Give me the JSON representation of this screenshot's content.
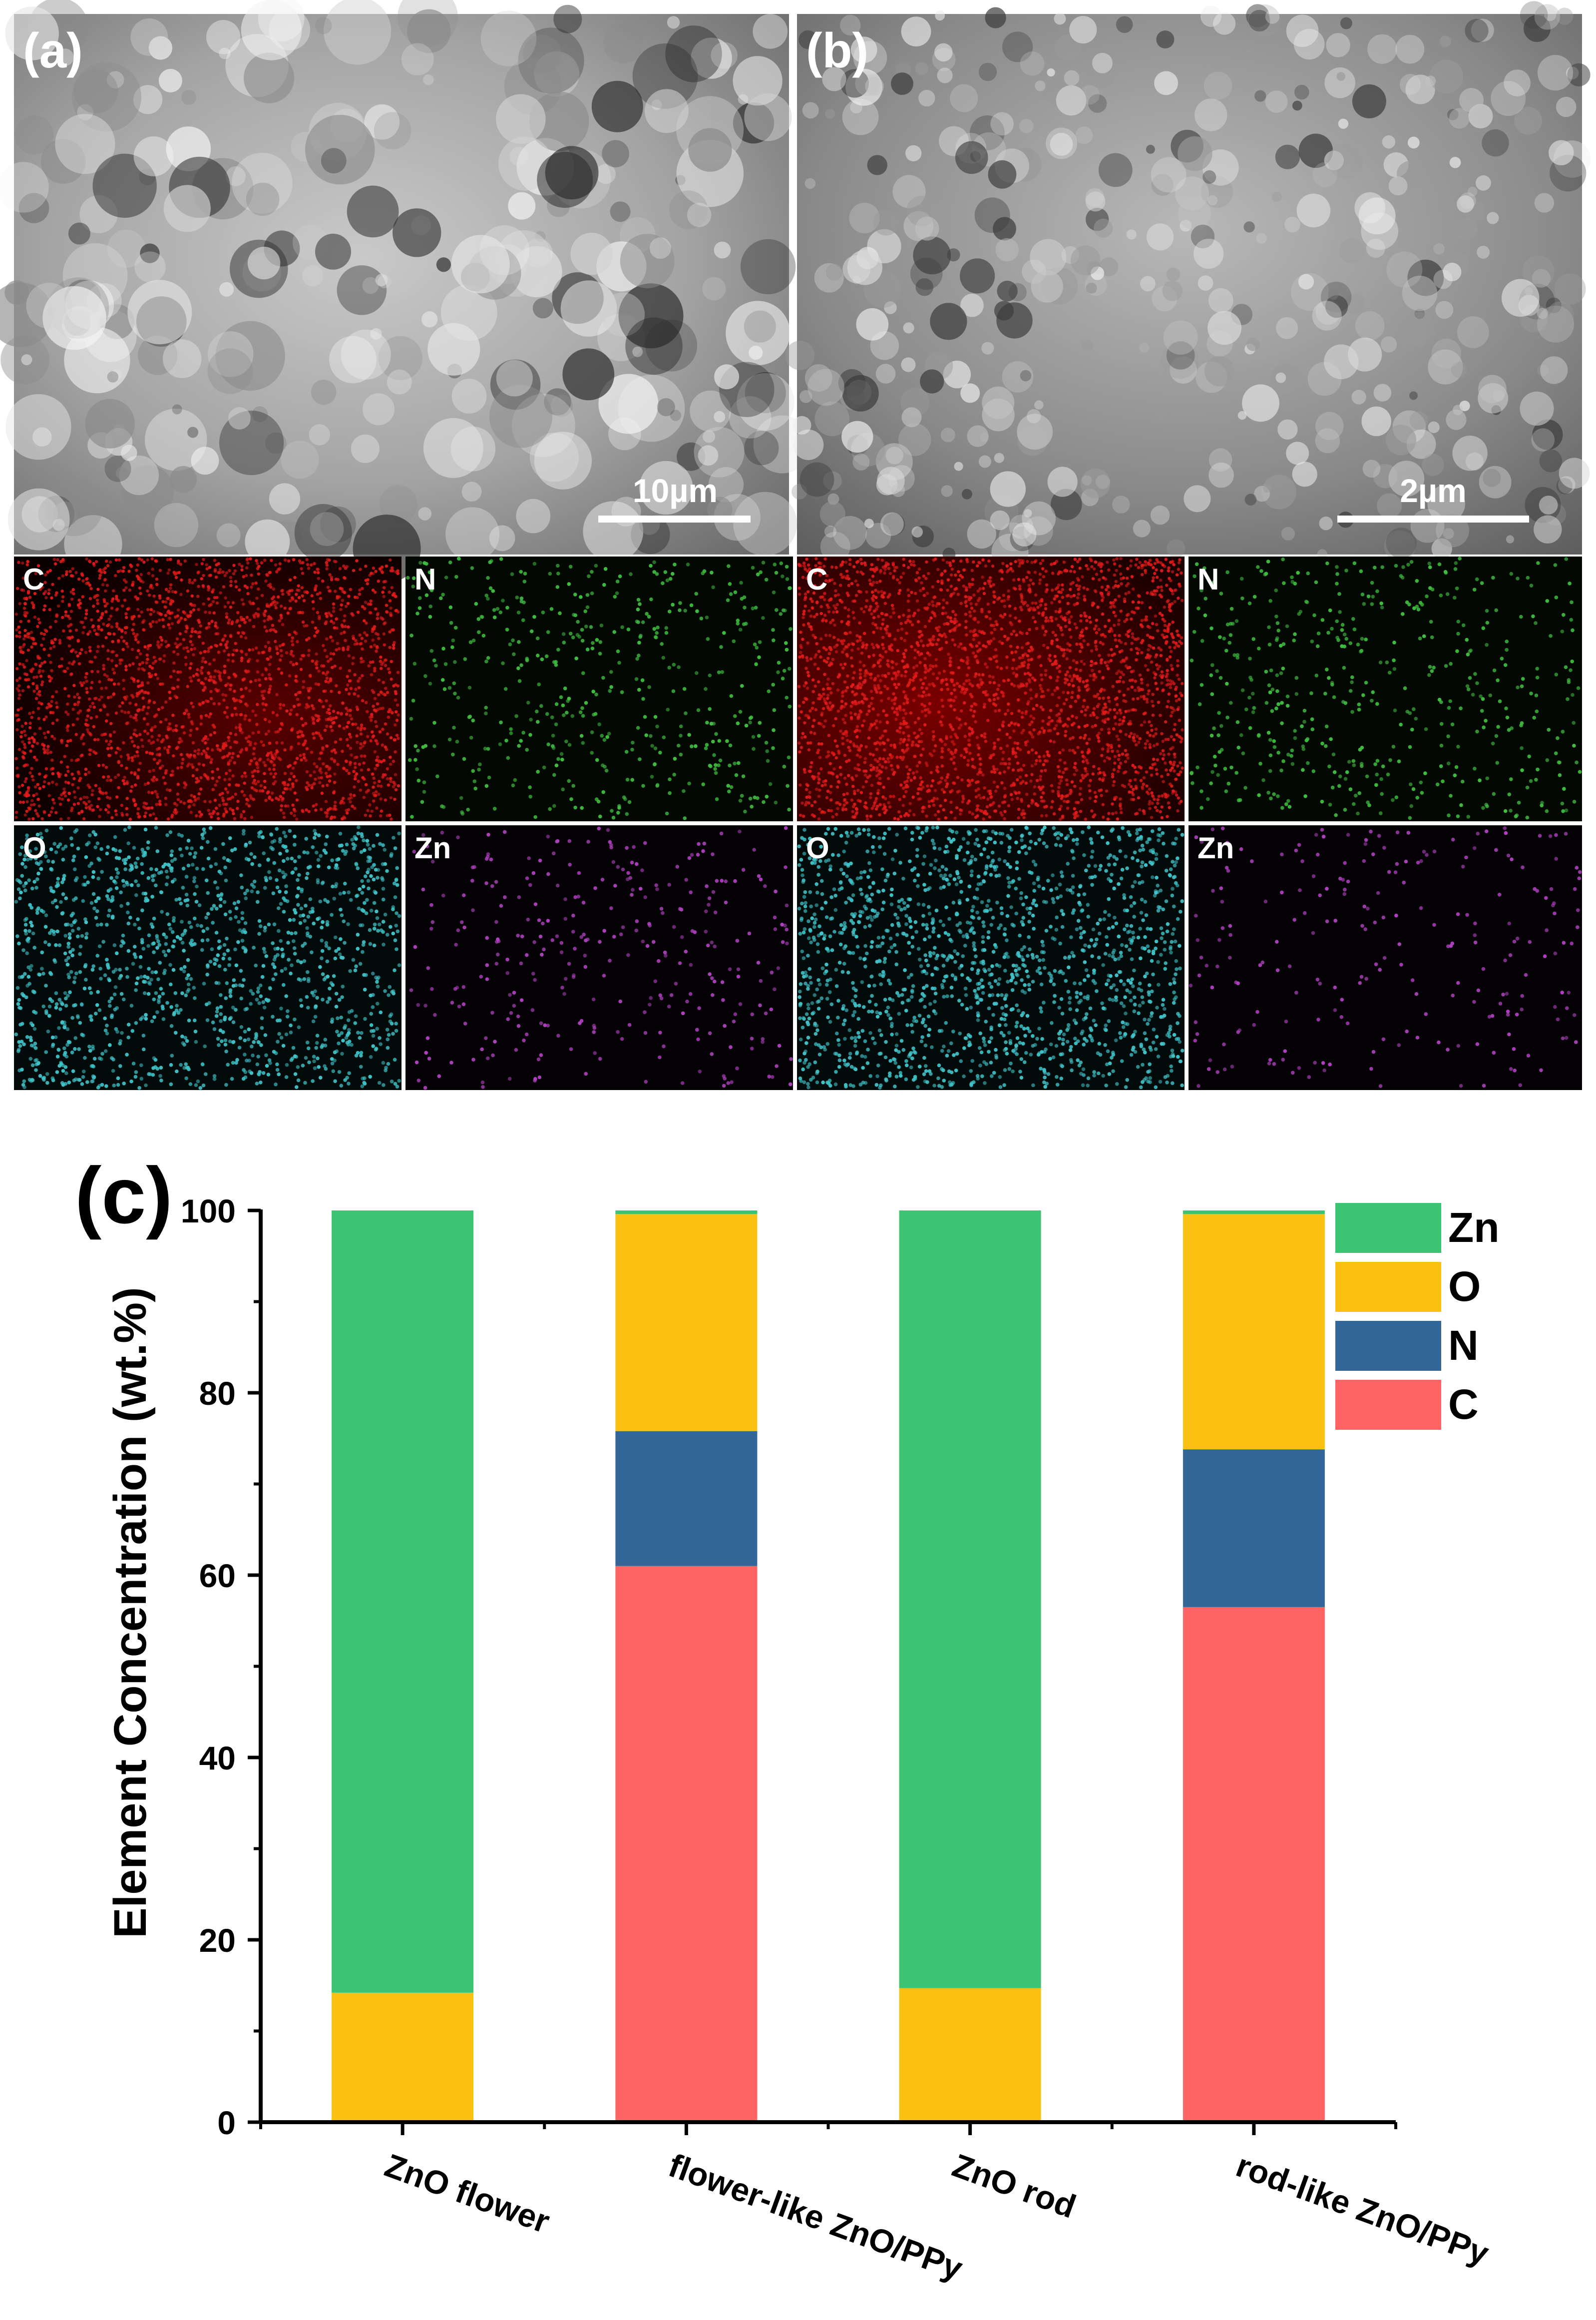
{
  "sem_panels": [
    {
      "label": "(a)",
      "scale_bar": "10µm"
    },
    {
      "label": "(b)",
      "scale_bar": "2µm"
    }
  ],
  "eds_maps": [
    {
      "element": "C",
      "color": "#e01a1a"
    },
    {
      "element": "N",
      "color": "#3fbf3f"
    },
    {
      "element": "O",
      "color": "#3fc3c8"
    },
    {
      "element": "Zn",
      "color": "#b040c0"
    }
  ],
  "chart_data": {
    "type": "bar",
    "stacked": true,
    "panel_label": "(c)",
    "title": "",
    "xlabel": "",
    "ylabel": "Element Concentration (wt.%)",
    "ylim": [
      0,
      100
    ],
    "yticks": [
      0,
      20,
      40,
      60,
      80,
      100
    ],
    "categories": [
      "ZnO flower",
      "flower-like ZnO/PPy",
      "ZnO rod",
      "rod-like ZnO/PPy"
    ],
    "series": [
      {
        "name": "C",
        "color": "#ff6464",
        "values": [
          0,
          61,
          0,
          56.5
        ]
      },
      {
        "name": "N",
        "color": "#336699",
        "values": [
          0,
          14.8,
          0,
          17.3
        ]
      },
      {
        "name": "O",
        "color": "#fbc112",
        "values": [
          14.2,
          23.8,
          14.7,
          25.8
        ]
      },
      {
        "name": "Zn",
        "color": "#3cc474",
        "values": [
          85.8,
          0.4,
          85.3,
          0.4
        ]
      }
    ],
    "legend_order": [
      "Zn",
      "O",
      "N",
      "C"
    ],
    "legend_position": "top-right",
    "grid": false
  }
}
